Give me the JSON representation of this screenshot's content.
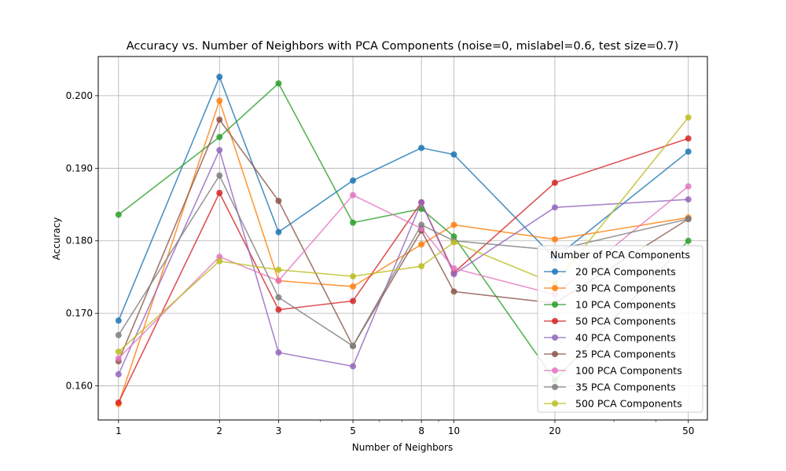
{
  "chart_data": {
    "type": "line",
    "title": "Accuracy vs. Number of Neighbors with PCA Components (noise=0, mislabel=0.6, test size=0.7)",
    "xlabel": "Number of Neighbors",
    "ylabel": "Accuracy",
    "x_scale": "log",
    "xlim": [
      0.87,
      57
    ],
    "ylim": [
      0.1553,
      0.2054
    ],
    "x_ticks": [
      1,
      2,
      3,
      5,
      8,
      10,
      20,
      50
    ],
    "y_ticks": [
      0.16,
      0.17,
      0.18,
      0.19,
      0.2
    ],
    "y_tick_labels": [
      "0.160",
      "0.170",
      "0.180",
      "0.190",
      "0.200"
    ],
    "grid": true,
    "legend": {
      "title": "Number of PCA Components",
      "placement": "center-right"
    },
    "x": [
      1,
      2,
      3,
      5,
      8,
      10,
      20,
      50
    ],
    "series": [
      {
        "name": "20 PCA Components",
        "color": "#1f77b4",
        "values": [
          0.169,
          0.2026,
          0.1812,
          0.1883,
          0.1928,
          0.1919,
          0.1776,
          0.1923
        ]
      },
      {
        "name": "30 PCA Components",
        "color": "#ff7f0e",
        "values": [
          0.1575,
          0.1993,
          0.1745,
          0.1737,
          0.1795,
          0.1822,
          0.1802,
          0.1832
        ]
      },
      {
        "name": "10 PCA Components",
        "color": "#2ca02c",
        "values": [
          0.1836,
          0.1943,
          0.2017,
          0.1825,
          0.1844,
          0.1806,
          0.1608,
          0.18
        ]
      },
      {
        "name": "50 PCA Components",
        "color": "#d62728",
        "values": [
          0.1577,
          0.1866,
          0.1705,
          0.1717,
          0.1853,
          0.1756,
          0.188,
          0.1941
        ]
      },
      {
        "name": "40 PCA Components",
        "color": "#9467bd",
        "values": [
          0.1616,
          0.1925,
          0.1646,
          0.1627,
          0.1853,
          0.1754,
          0.1846,
          0.1857
        ]
      },
      {
        "name": "25 PCA Components",
        "color": "#8c564b",
        "values": [
          0.1634,
          0.1967,
          0.1855,
          0.1655,
          0.1814,
          0.173,
          0.1714,
          0.183
        ]
      },
      {
        "name": "100 PCA Components",
        "color": "#e377c2",
        "values": [
          0.1638,
          0.1778,
          0.1745,
          0.1863,
          0.1817,
          0.1762,
          0.1726,
          0.1875
        ]
      },
      {
        "name": "35 PCA Components",
        "color": "#7f7f7f",
        "values": [
          0.167,
          0.189,
          0.1722,
          0.1655,
          0.1822,
          0.18,
          0.1787,
          0.183
        ]
      },
      {
        "name": "500 PCA Components",
        "color": "#bcbd22",
        "values": [
          0.1647,
          0.1772,
          0.176,
          0.1751,
          0.1765,
          0.1798,
          0.1741,
          0.197
        ]
      }
    ]
  }
}
